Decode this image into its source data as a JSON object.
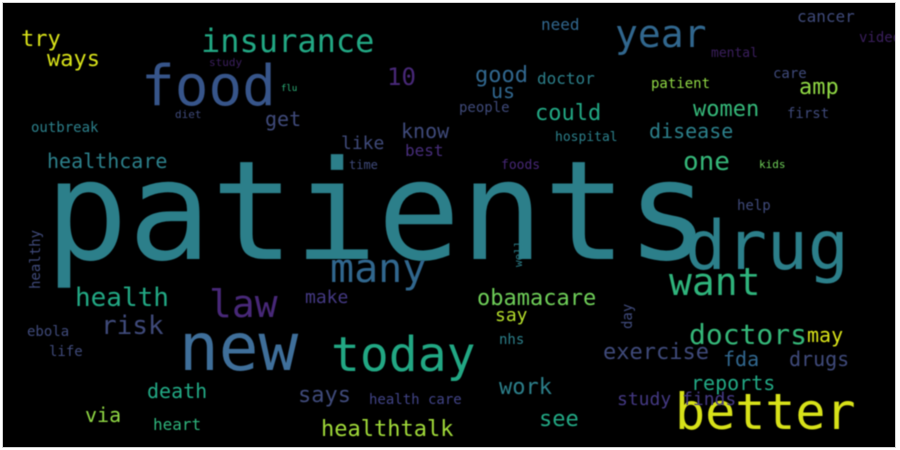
{
  "colors": {
    "background": "#000000",
    "teal": "#2c7f8a",
    "blue": "#37558a",
    "slate": "#3f4a7a",
    "green": "#22a884",
    "lime": "#8fd744",
    "yellow": "#d8e219",
    "purple": "#482878",
    "dark_purple": "#3b1f5e"
  },
  "words": [
    {
      "text": "patients",
      "color": "#2c7f8a"
    },
    {
      "text": "new",
      "color": "#3f6f9a"
    },
    {
      "text": "today",
      "color": "#22a884"
    },
    {
      "text": "drug",
      "color": "#2c7f8a"
    },
    {
      "text": "better",
      "color": "#d8e219"
    },
    {
      "text": "food",
      "color": "#37558a"
    },
    {
      "text": "many",
      "color": "#31678e"
    },
    {
      "text": "law",
      "color": "#482878"
    },
    {
      "text": "want",
      "color": "#2fb47c"
    },
    {
      "text": "insurance",
      "color": "#22a884"
    },
    {
      "text": "year",
      "color": "#31678e"
    },
    {
      "text": "health",
      "color": "#22a884"
    },
    {
      "text": "risk",
      "color": "#3f4a7a"
    },
    {
      "text": "doctors",
      "color": "#35b779"
    },
    {
      "text": "obamacare",
      "color": "#6ece58"
    },
    {
      "text": "healthtalk",
      "color": "#a0da39"
    },
    {
      "text": "one",
      "color": "#35b779"
    },
    {
      "text": "healthcare",
      "color": "#2c7f8a"
    },
    {
      "text": "could",
      "color": "#22a884"
    },
    {
      "text": "women",
      "color": "#35b779"
    },
    {
      "text": "disease",
      "color": "#2c7f8a"
    },
    {
      "text": "good",
      "color": "#31678e"
    },
    {
      "text": "ways",
      "color": "#d8e219"
    },
    {
      "text": "try",
      "color": "#d8e219"
    },
    {
      "text": "amp",
      "color": "#8fd744"
    },
    {
      "text": "us",
      "color": "#31678e"
    },
    {
      "text": "10",
      "color": "#482878"
    },
    {
      "text": "get",
      "color": "#3f4a7a"
    },
    {
      "text": "know",
      "color": "#3f4a7a"
    },
    {
      "text": "like",
      "color": "#3f4a7a"
    },
    {
      "text": "make",
      "color": "#35b779"
    },
    {
      "text": "may",
      "color": "#443983"
    },
    {
      "text": "say",
      "color": "#d8e219"
    },
    {
      "text": "exercise",
      "color": "#b5de2b"
    },
    {
      "text": "fda",
      "color": "#3f4a7a"
    },
    {
      "text": "drugs",
      "color": "#31678e"
    },
    {
      "text": "death",
      "color": "#3f4a7a"
    },
    {
      "text": "says",
      "color": "#22a884"
    },
    {
      "text": "work",
      "color": "#3f4a7a"
    },
    {
      "text": "reports",
      "color": "#2c7f8a"
    },
    {
      "text": "via",
      "color": "#22a884"
    },
    {
      "text": "see",
      "color": "#8fd744"
    },
    {
      "text": "heart",
      "color": "#22a884"
    },
    {
      "text": "health care",
      "color": "#2fb47c"
    },
    {
      "text": "study finds",
      "color": "#414487"
    },
    {
      "text": "best",
      "color": "#443983"
    },
    {
      "text": "people",
      "color": "#472d7b"
    },
    {
      "text": "doctor",
      "color": "#3f4a7a"
    },
    {
      "text": "patient",
      "color": "#2c7f8a"
    },
    {
      "text": "hospital",
      "color": "#8fd744"
    },
    {
      "text": "first",
      "color": "#2c7f8a"
    },
    {
      "text": "care",
      "color": "#3f4a7a"
    },
    {
      "text": "need",
      "color": "#3f4a7a"
    },
    {
      "text": "mental",
      "color": "#31678e"
    },
    {
      "text": "cancer",
      "color": "#3b1f5e"
    },
    {
      "text": "video",
      "color": "#3f4a7a"
    },
    {
      "text": "help",
      "color": "#3b1f5e"
    },
    {
      "text": "outbreak",
      "color": "#3f4a7a"
    },
    {
      "text": "diet",
      "color": "#2c7f8a"
    },
    {
      "text": "study",
      "color": "#3f4a7a"
    },
    {
      "text": "flu",
      "color": "#3b1f5e"
    },
    {
      "text": "time",
      "color": "#2fb47c"
    },
    {
      "text": "foods",
      "color": "#3f4a7a"
    },
    {
      "text": "kids",
      "color": "#482878"
    },
    {
      "text": "well",
      "color": "#6ece58"
    },
    {
      "text": "healthy",
      "color": "#2c7f8a"
    },
    {
      "text": "ebola",
      "color": "#3f4a7a"
    },
    {
      "text": "life",
      "color": "#3f4a7a"
    },
    {
      "text": "nhs",
      "color": "#3f4a7a"
    },
    {
      "text": "day",
      "color": "#2c7f8a"
    },
    {
      "text": "finds",
      "color": "#3f4a7a"
    }
  ]
}
